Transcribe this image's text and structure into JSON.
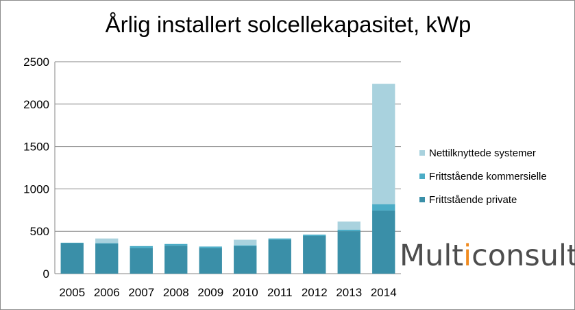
{
  "chart_data": {
    "type": "bar",
    "stacked": true,
    "title": "Årlig installert solcellekapasitet, kWp",
    "xlabel": "",
    "ylabel": "",
    "categories": [
      "2005",
      "2006",
      "2007",
      "2008",
      "2009",
      "2010",
      "2011",
      "2012",
      "2013",
      "2014"
    ],
    "ylim": [
      0,
      2500
    ],
    "yticks": [
      0,
      500,
      1000,
      1500,
      2000,
      2500
    ],
    "grid": true,
    "legend_position": "right",
    "series": [
      {
        "name": "Frittstående private",
        "color": "#3a8fa8",
        "values": [
          360,
          355,
          300,
          330,
          300,
          325,
          400,
          445,
          500,
          745
        ]
      },
      {
        "name": "Frittstående kommersielle",
        "color": "#4bacc6",
        "values": [
          5,
          5,
          25,
          20,
          20,
          10,
          15,
          15,
          20,
          75
        ]
      },
      {
        "name": "Nettilknyttede systemer",
        "color": "#a9d2de",
        "values": [
          0,
          55,
          0,
          0,
          0,
          65,
          0,
          0,
          95,
          1420
        ]
      }
    ]
  },
  "logo": {
    "before": "Mult",
    "dot": "i",
    "after": "consult"
  }
}
